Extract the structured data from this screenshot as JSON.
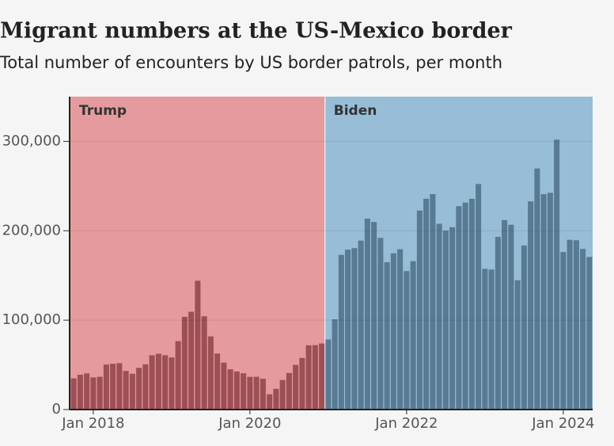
{
  "chart_data": {
    "type": "bar",
    "title": "Migrant numbers at the US-Mexico border",
    "subtitle": "Total number of encounters by US border patrols, per month",
    "categories": [
      null,
      null,
      null,
      "Jan 2018",
      null,
      null,
      null,
      null,
      null,
      null,
      null,
      null,
      null,
      null,
      null,
      null,
      null,
      null,
      null,
      null,
      null,
      null,
      null,
      null,
      null,
      null,
      null,
      "Jan 2020",
      null,
      null,
      null,
      null,
      null,
      null,
      null,
      null,
      null,
      null,
      null,
      null,
      null,
      null,
      null,
      null,
      null,
      null,
      null,
      null,
      null,
      null,
      null,
      "Jan 2022",
      null,
      null,
      null,
      null,
      null,
      null,
      null,
      null,
      null,
      null,
      null,
      null,
      null,
      null,
      null,
      null,
      null,
      null,
      null,
      null,
      null,
      null,
      null,
      "Jan 2024",
      null,
      null,
      null,
      null
    ],
    "series": [
      {
        "name": "Trump",
        "color": "#9c4f55",
        "background": "#e59b9d",
        "values": [
          34900,
          39000,
          40500,
          36000,
          36700,
          50300,
          51200,
          51900,
          43200,
          40000,
          46700,
          50600,
          60700,
          62400,
          60800,
          58300,
          76500,
          103700,
          109400,
          144100,
          104300,
          81800,
          62700,
          52500,
          45100,
          42600,
          40600,
          36600,
          36700,
          34500,
          17100,
          23200,
          33000,
          40900,
          50000,
          57700,
          71900,
          72100,
          73900,
          null,
          null,
          null,
          null,
          null,
          null,
          null,
          null,
          null,
          null,
          null,
          null,
          null,
          null,
          null,
          null,
          null,
          null,
          null,
          null,
          null,
          null,
          null,
          null,
          null,
          null,
          null,
          null,
          null,
          null,
          null,
          null,
          null,
          null,
          null,
          null,
          null,
          null,
          null,
          null,
          null
        ]
      },
      {
        "name": "Biden",
        "color": "#587b93",
        "background": "#98bdd6",
        "values": [
          null,
          null,
          null,
          null,
          null,
          null,
          null,
          null,
          null,
          null,
          null,
          null,
          null,
          null,
          null,
          null,
          null,
          null,
          null,
          null,
          null,
          null,
          null,
          null,
          null,
          null,
          null,
          null,
          null,
          null,
          null,
          null,
          null,
          null,
          null,
          null,
          null,
          null,
          null,
          78400,
          101000,
          173000,
          178800,
          180600,
          189000,
          213600,
          209800,
          192000,
          164800,
          174800,
          179300,
          154900,
          166000,
          222600,
          235800,
          241000,
          207800,
          200200,
          204000,
          227500,
          231500,
          235800,
          252300,
          157400,
          156600,
          193200,
          211900,
          206700,
          144600,
          183500,
          232900,
          269700,
          240900,
          242400,
          301900,
          176200,
          189900,
          189400,
          179700,
          170700
        ]
      }
    ],
    "ylim": [
      0,
      350000
    ],
    "yticks": [
      0,
      {
        "value": 100000,
        "label": "100,000"
      },
      {
        "value": 200000,
        "label": "200,000"
      },
      {
        "value": 300000,
        "label": "300,000"
      }
    ],
    "grid": true
  }
}
